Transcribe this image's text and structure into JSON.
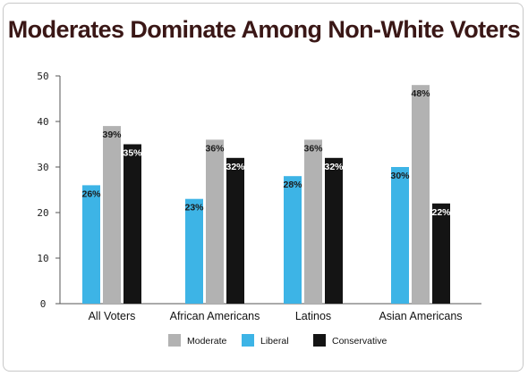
{
  "chart_data": {
    "type": "bar",
    "title": "Moderates Dominate Among Non-White Voters",
    "xlabel": "",
    "ylabel": "",
    "categories": [
      "All Voters",
      "African Americans",
      "Latinos",
      "Asian Americans"
    ],
    "series": [
      {
        "name": "Liberal",
        "values": [
          26,
          23,
          28,
          30
        ],
        "labels": [
          "26%",
          "23%",
          "28%",
          "30%"
        ],
        "color": "#3db4e6"
      },
      {
        "name": "Moderate",
        "values": [
          39,
          36,
          36,
          48
        ],
        "labels": [
          "39%",
          "36%",
          "36%",
          "48%"
        ],
        "color": "#b2b2b2"
      },
      {
        "name": "Conservative",
        "values": [
          35,
          32,
          32,
          22
        ],
        "labels": [
          "35%",
          "32%",
          "32%",
          "22%"
        ],
        "color": "#141414"
      }
    ],
    "ylim": [
      0,
      50
    ],
    "yticks": [
      "0",
      "10",
      "20",
      "30",
      "40",
      "50"
    ],
    "grid": false,
    "legend": {
      "placement": "bottom-center",
      "order": [
        "Moderate",
        "Liberal",
        "Conservative"
      ]
    }
  }
}
